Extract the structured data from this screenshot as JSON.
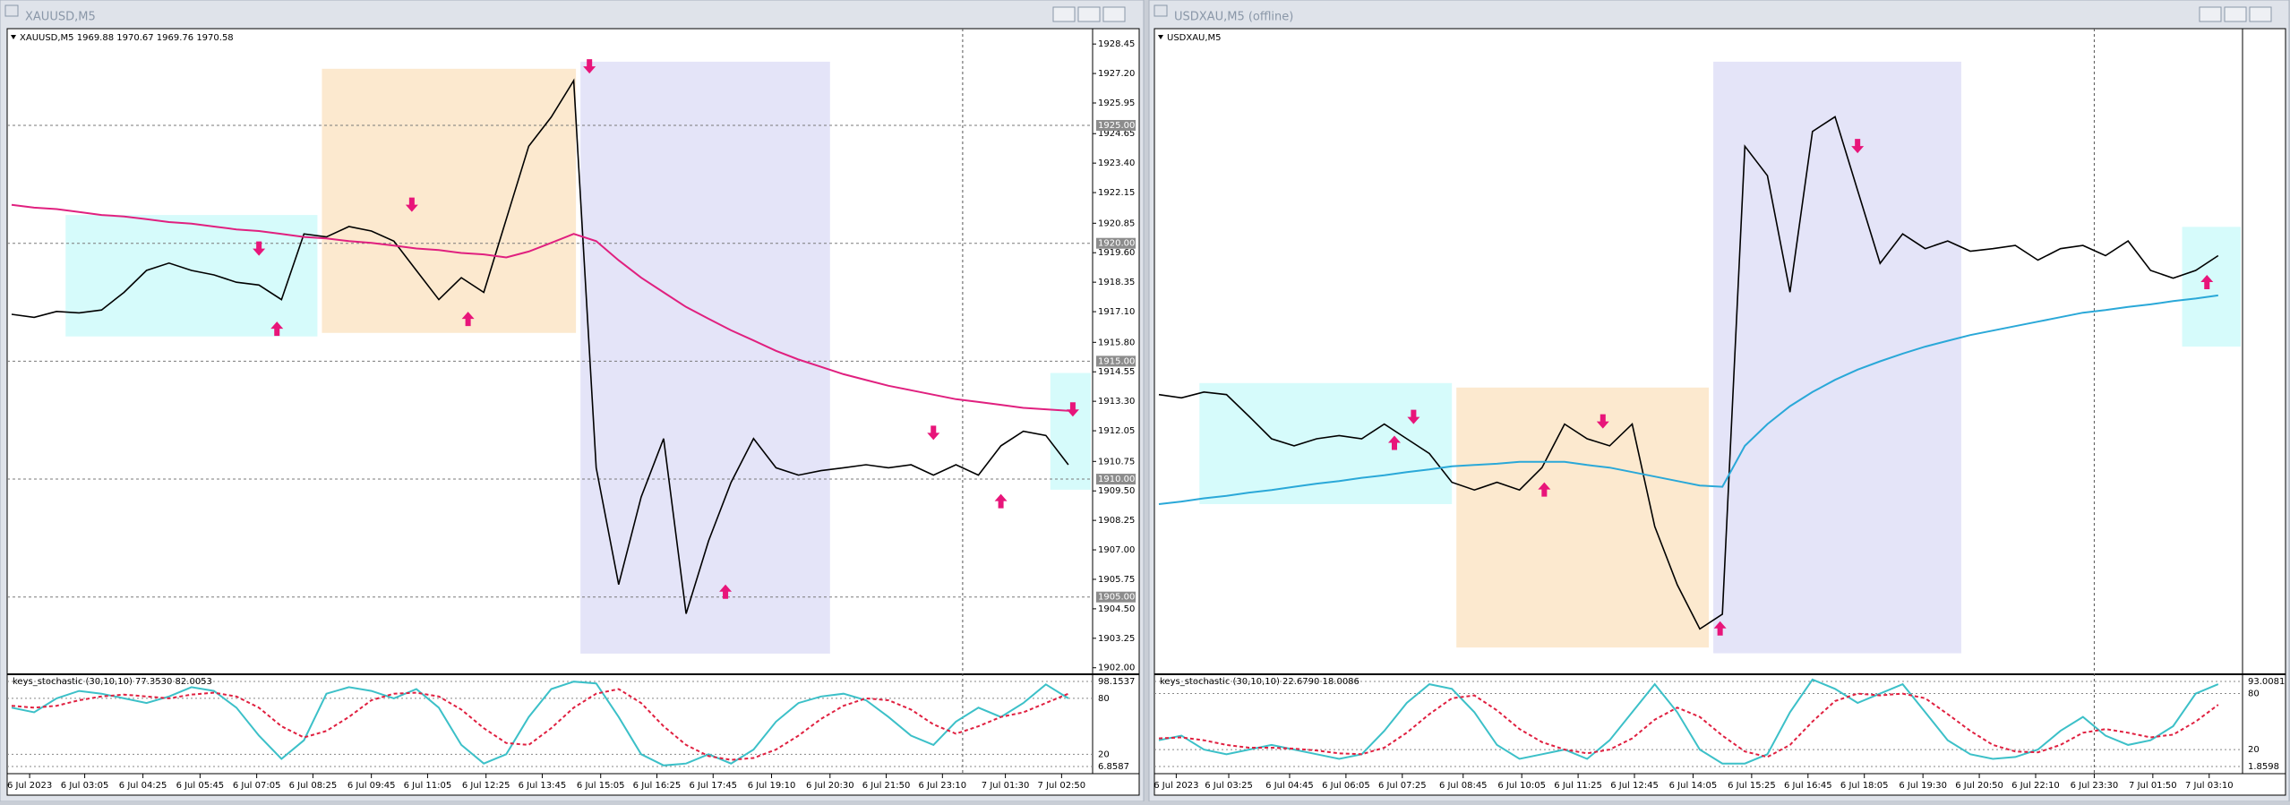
{
  "windows": [
    {
      "title": "XAUUSD,M5"
    },
    {
      "title": "USDXAU,M5 (offline)"
    }
  ],
  "chart_data": [
    {
      "type": "line",
      "header": "XAUUSD,M5  1969.88 1970.67 1969.76 1970.58",
      "xlim": [
        0,
        48
      ],
      "xticks": [
        {
          "value": 0.8,
          "label": "6 Jul 2023"
        },
        {
          "value": 3.25,
          "label": "6 Jul 03:05"
        },
        {
          "value": 5.84,
          "label": "6 Jul 04:25"
        },
        {
          "value": 8.38,
          "label": "6 Jul 05:45"
        },
        {
          "value": 10.9,
          "label": "6 Jul 07:05"
        },
        {
          "value": 13.4,
          "label": "6 Jul 08:25"
        },
        {
          "value": 16,
          "label": "6 Jul 09:45"
        },
        {
          "value": 18.5,
          "label": "6 Jul 11:05"
        },
        {
          "value": 21.1,
          "label": "6 Jul 12:25"
        },
        {
          "value": 23.6,
          "label": "6 Jul 13:45"
        },
        {
          "value": 26.2,
          "label": "6 Jul 15:05"
        },
        {
          "value": 28.7,
          "label": "6 Jul 16:25"
        },
        {
          "value": 31.2,
          "label": "6 Jul 17:45"
        },
        {
          "value": 33.8,
          "label": "6 Jul 19:10"
        },
        {
          "value": 36.4,
          "label": "6 Jul 20:30"
        },
        {
          "value": 38.9,
          "label": "6 Jul 21:50"
        },
        {
          "value": 41.4,
          "label": "6 Jul 23:10"
        },
        {
          "value": 44.2,
          "label": "7 Jul 01:30"
        },
        {
          "value": 46.7,
          "label": "7 Jul 02:50"
        }
      ],
      "ylim": [
        1901.8,
        1928.95
      ],
      "yticks": [
        1928.45,
        {
          "value": 1927.2,
          "label": "1927.20"
        },
        1925.95,
        1924.65,
        {
          "value": 1923.4,
          "label": "1923.40"
        },
        1922.15,
        1920.85,
        {
          "value": 1919.6,
          "label": "1919.60"
        },
        1918.35,
        {
          "value": 1917.1,
          "label": "1917.10"
        },
        {
          "value": 1915.8,
          "label": "1915.80"
        },
        1914.55,
        {
          "value": 1913.3,
          "label": "1913.30"
        },
        1912.05,
        1910.75,
        {
          "value": 1909.5,
          "label": "1909.50"
        },
        1908.25,
        {
          "value": 1907,
          "label": "1907.00"
        },
        1905.75,
        {
          "value": 1904.5,
          "label": "1904.50"
        },
        1903.25,
        {
          "value": 1902,
          "label": "1902.00"
        }
      ],
      "levels": [
        {
          "value": 1925,
          "label": "1925.00"
        },
        {
          "value": 1920,
          "label": "1920.00"
        },
        {
          "value": 1915,
          "label": "1915.00"
        },
        {
          "value": 1910,
          "label": "1910.00"
        },
        {
          "value": 1905,
          "label": "1905.00"
        }
      ],
      "vline": 42.3,
      "series": [
        {
          "color": "#000000",
          "values": [
            1916.99,
            1916.86,
            1917.11,
            1917.05,
            1917.17,
            1917.92,
            1918.85,
            1919.16,
            1918.85,
            1918.66,
            1918.35,
            1918.23,
            1917.61,
            1920.4,
            1920.27,
            1920.71,
            1920.52,
            1920.09,
            1918.85,
            1917.61,
            1918.54,
            1917.92,
            1921.02,
            1924.12,
            1925.35,
            1926.9,
            1910.48,
            1905.53,
            1909.24,
            1911.72,
            1904.29,
            1907.38,
            1909.86,
            1911.72,
            1910.48,
            1910.17,
            1910.36,
            1910.48,
            1910.61,
            1910.48,
            1910.61,
            1910.17,
            1910.61,
            1910.17,
            1911.41,
            1912.03,
            1911.85,
            1910.61
          ]
        },
        {
          "color": "#e0207f",
          "values": [
            1921.63,
            1921.51,
            1921.45,
            1921.33,
            1921.2,
            1921.14,
            1921.02,
            1920.9,
            1920.83,
            1920.71,
            1920.59,
            1920.52,
            1920.4,
            1920.27,
            1920.21,
            1920.09,
            1920.02,
            1919.9,
            1919.78,
            1919.71,
            1919.59,
            1919.53,
            1919.4,
            1919.65,
            1920.02,
            1920.4,
            1920.09,
            1919.28,
            1918.54,
            1917.92,
            1917.3,
            1916.8,
            1916.31,
            1915.88,
            1915.44,
            1915.07,
            1914.76,
            1914.45,
            1914.2,
            1913.96,
            1913.77,
            1913.58,
            1913.39,
            1913.27,
            1913.15,
            1913.02,
            1912.96,
            1912.9
          ]
        }
      ],
      "zones": [
        {
          "color": "#d6fbfb",
          "x": [
            2.4,
            13.6
          ],
          "y": [
            1916.05,
            1921.2
          ]
        },
        {
          "color": "#fce9cf",
          "x": [
            13.8,
            25.1
          ],
          "y": [
            1916.2,
            1927.4
          ]
        },
        {
          "color": "#e4e4f8",
          "x": [
            25.3,
            36.4
          ],
          "y": [
            1902.6,
            1927.7
          ]
        },
        {
          "color": "#d6fbfb",
          "x": [
            46.2,
            48
          ],
          "y": [
            1909.55,
            1914.5
          ]
        }
      ],
      "arrows": [
        {
          "x": 11,
          "value": 1919.47,
          "dir": "down"
        },
        {
          "x": 11.8,
          "value": 1916.68,
          "dir": "up"
        },
        {
          "x": 17.8,
          "value": 1921.33,
          "dir": "down"
        },
        {
          "x": 20.3,
          "value": 1917.1,
          "dir": "up"
        },
        {
          "x": 25.7,
          "value": 1927.2,
          "dir": "down"
        },
        {
          "x": 31.75,
          "value": 1905.53,
          "dir": "up"
        },
        {
          "x": 41,
          "value": 1911.66,
          "dir": "down"
        },
        {
          "x": 44,
          "value": 1909.37,
          "dir": "up"
        },
        {
          "x": 47.2,
          "value": 1912.65,
          "dir": "down"
        }
      ]
    },
    {
      "type": "line",
      "header": "keys_stochastic (30,10,10) 77.3530 82.0053",
      "ylim": [
        6.8587,
        98.1537
      ],
      "yticks": [
        98.1537,
        80,
        20,
        6.8587
      ],
      "series": [
        {
          "color": "#3cc0c8",
          "values": [
            70,
            65,
            80,
            88,
            85,
            80,
            75,
            82,
            92,
            88,
            70,
            40,
            15,
            35,
            85,
            92,
            88,
            80,
            90,
            70,
            30,
            10,
            20,
            60,
            90,
            98,
            96,
            60,
            20,
            8,
            10,
            20,
            10,
            25,
            55,
            75,
            82,
            85,
            78,
            60,
            40,
            30,
            55,
            70,
            60,
            75,
            95,
            80
          ]
        },
        {
          "color": "#e02040",
          "dash": true,
          "values": [
            72,
            70,
            72,
            78,
            82,
            84,
            82,
            80,
            84,
            86,
            82,
            70,
            50,
            38,
            45,
            60,
            78,
            85,
            86,
            82,
            68,
            48,
            32,
            30,
            48,
            70,
            85,
            90,
            75,
            50,
            30,
            18,
            14,
            16,
            25,
            40,
            58,
            72,
            80,
            78,
            68,
            52,
            42,
            50,
            60,
            65,
            75,
            85
          ]
        }
      ]
    },
    {
      "type": "line",
      "header": "USDXAU,M5",
      "xlim": [
        0,
        48
      ],
      "xticks": [
        {
          "value": 0.77,
          "label": "6 Jul 2023"
        },
        {
          "value": 3.1,
          "label": "6 Jul 03:25"
        },
        {
          "value": 5.8,
          "label": "6 Jul 04:45"
        },
        {
          "value": 8.3,
          "label": "6 Jul 06:05"
        },
        {
          "value": 10.8,
          "label": "6 Jul 07:25"
        },
        {
          "value": 13.5,
          "label": "6 Jul 08:45"
        },
        {
          "value": 16.1,
          "label": "6 Jul 10:05"
        },
        {
          "value": 18.6,
          "label": "6 Jul 11:25"
        },
        {
          "value": 21.1,
          "label": "6 Jul 12:45"
        },
        {
          "value": 23.7,
          "label": "6 Jul 14:05"
        },
        {
          "value": 26.3,
          "label": "6 Jul 15:25"
        },
        {
          "value": 28.8,
          "label": "6 Jul 16:45"
        },
        {
          "value": 31.3,
          "label": "6 Jul 18:05"
        },
        {
          "value": 33.9,
          "label": "6 Jul 19:30"
        },
        {
          "value": 36.4,
          "label": "6 Jul 20:50"
        },
        {
          "value": 38.9,
          "label": "6 Jul 22:10"
        },
        {
          "value": 41.5,
          "label": "6 Jul 23:30"
        },
        {
          "value": 44.1,
          "label": "7 Jul 01:50"
        },
        {
          "value": 46.6,
          "label": "7 Jul 03:10"
        }
      ],
      "ylim": [
        0,
        100
      ],
      "vline": 41.5,
      "series": [
        {
          "color": "#000000",
          "values": [
            43.4,
            42.9,
            43.8,
            43.4,
            40,
            36.5,
            35.4,
            36.5,
            37,
            36.5,
            38.8,
            36.5,
            34.2,
            29.7,
            28.5,
            29.7,
            28.5,
            32,
            38.8,
            36.5,
            35.4,
            38.8,
            22.8,
            13.7,
            6.8,
            9.1,
            82.2,
            77.6,
            59.4,
            84.5,
            86.8,
            75.3,
            63.9,
            68.5,
            66.2,
            67.4,
            65.8,
            66.2,
            66.7,
            64.4,
            66.2,
            66.7,
            65.1,
            67.4,
            62.8,
            61.6,
            62.8,
            65.1
          ]
        },
        {
          "color": "#2aa8d8",
          "values": [
            26.3,
            26.7,
            27.2,
            27.6,
            28.1,
            28.5,
            29,
            29.5,
            29.9,
            30.4,
            30.8,
            31.3,
            31.7,
            32.2,
            32.4,
            32.6,
            32.9,
            32.9,
            32.9,
            32.4,
            32,
            31.3,
            30.6,
            29.9,
            29.2,
            29,
            35.4,
            38.8,
            41.6,
            43.8,
            45.7,
            47.3,
            48.6,
            49.8,
            50.9,
            51.8,
            52.7,
            53.4,
            54.1,
            54.8,
            55.5,
            56.2,
            56.6,
            57.1,
            57.5,
            58,
            58.4,
            58.9
          ]
        }
      ],
      "zones": [
        {
          "color": "#d6fbfb",
          "x": [
            1.8,
            13
          ],
          "y": [
            26.3,
            45.2
          ]
        },
        {
          "color": "#fce9cf",
          "x": [
            13.2,
            24.4
          ],
          "y": [
            3.9,
            44.5
          ]
        },
        {
          "color": "#e4e4f8",
          "x": [
            24.6,
            35.6
          ],
          "y": [
            3,
            95.4
          ]
        },
        {
          "color": "#d6fbfb",
          "x": [
            45.4,
            48
          ],
          "y": [
            50.9,
            69.6
          ]
        }
      ],
      "arrows": [
        {
          "x": 10.45,
          "value": 37,
          "dir": "up"
        },
        {
          "x": 11.3,
          "value": 38.8,
          "dir": "down"
        },
        {
          "x": 17.1,
          "value": 29.7,
          "dir": "up"
        },
        {
          "x": 19.7,
          "value": 38.1,
          "dir": "down"
        },
        {
          "x": 24.9,
          "value": 8,
          "dir": "up"
        },
        {
          "x": 31,
          "value": 81.1,
          "dir": "down"
        },
        {
          "x": 46.5,
          "value": 62.1,
          "dir": "up"
        }
      ]
    },
    {
      "type": "line",
      "header": "keys_stochastic (30,10,10) 22.6790 18.0086",
      "ylim": [
        1.8598,
        93.0081
      ],
      "yticks": [
        93.0081,
        80,
        20,
        1.8598
      ],
      "series": [
        {
          "color": "#3cc0c8",
          "values": [
            30,
            35,
            20,
            15,
            20,
            25,
            20,
            15,
            10,
            15,
            40,
            70,
            90,
            85,
            60,
            25,
            10,
            15,
            20,
            10,
            30,
            60,
            90,
            60,
            20,
            5,
            5,
            15,
            60,
            95,
            85,
            70,
            80,
            90,
            60,
            30,
            15,
            10,
            12,
            20,
            40,
            55,
            35,
            25,
            30,
            45,
            80,
            90
          ]
        },
        {
          "color": "#e02040",
          "dash": true,
          "values": [
            32,
            33,
            30,
            25,
            22,
            22,
            21,
            19,
            16,
            15,
            22,
            38,
            58,
            75,
            78,
            62,
            42,
            28,
            20,
            16,
            20,
            32,
            52,
            65,
            55,
            35,
            18,
            12,
            25,
            50,
            72,
            80,
            78,
            80,
            75,
            58,
            40,
            25,
            18,
            17,
            25,
            38,
            42,
            38,
            33,
            36,
            50,
            68
          ]
        }
      ]
    }
  ]
}
